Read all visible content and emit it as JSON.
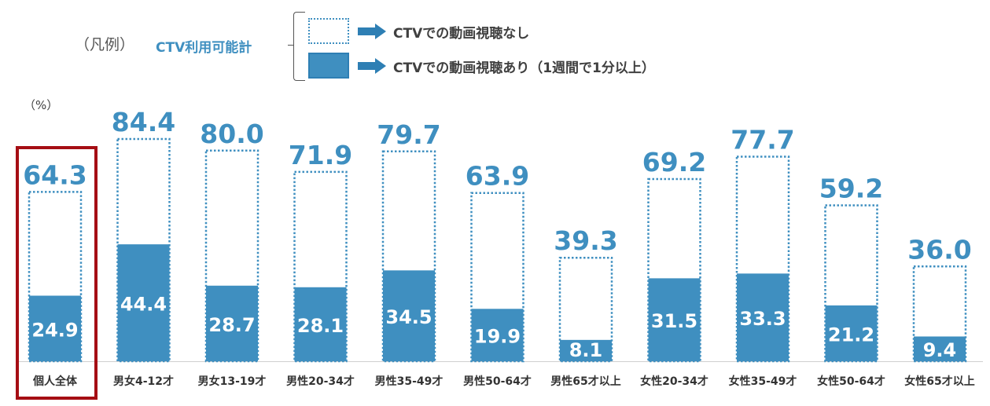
{
  "legend": {
    "title": "（凡例）",
    "ctv_label": "CTV利用可能計",
    "items": [
      {
        "label": "CTVでの動画視聴なし",
        "style": "dotted-outline"
      },
      {
        "label": "CTVでの動画視聴あり（1週間で1分以上）",
        "style": "solid-fill"
      }
    ]
  },
  "unit": "（%）",
  "colors": {
    "bar_fill": "#3f8fc0",
    "outline": "#3f8fc0",
    "total_label": "#3f8fc0",
    "inner_label": "#ffffff",
    "highlight": "#a50e14"
  },
  "chart_data": {
    "type": "bar",
    "categories": [
      "個人全体",
      "男女4-12才",
      "男女13-19才",
      "男性20-34才",
      "男性35-49才",
      "男性50-64才",
      "男性65才以上",
      "女性20-34才",
      "女性35-49才",
      "女性50-64才",
      "女性65才以上"
    ],
    "series": [
      {
        "name": "CTV利用可能計",
        "values": [
          64.3,
          84.4,
          80.0,
          71.9,
          79.7,
          63.9,
          39.3,
          69.2,
          77.7,
          59.2,
          36.0
        ]
      },
      {
        "name": "CTVでの動画視聴あり（1週間で1分以上）",
        "values": [
          24.9,
          44.4,
          28.7,
          28.1,
          34.5,
          19.9,
          8.1,
          31.5,
          33.3,
          21.2,
          9.4
        ]
      }
    ],
    "total_labels": [
      "64.3",
      "84.4",
      "80.0",
      "71.9",
      "79.7",
      "63.9",
      "39.3",
      "69.2",
      "77.7",
      "59.2",
      "36.0"
    ],
    "inner_labels": [
      "24.9",
      "44.4",
      "28.7",
      "28.1",
      "34.5",
      "19.9",
      "8.1",
      "31.5",
      "33.3",
      "21.2",
      "9.4"
    ],
    "ylim": [
      0,
      100
    ],
    "grid": false,
    "highlighted_category": "個人全体"
  }
}
